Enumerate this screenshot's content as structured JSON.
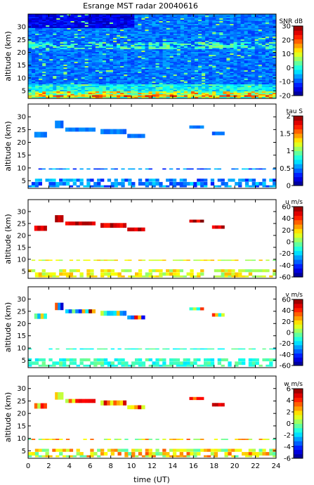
{
  "chart_data": {
    "type": "heatmap",
    "title": "Esrange MST radar 20040616",
    "xlabel": "time (UT)",
    "x_ticks": [
      0,
      2,
      4,
      6,
      8,
      10,
      12,
      14,
      16,
      18,
      20,
      22,
      24
    ],
    "xlim": [
      0,
      24
    ],
    "panels": [
      {
        "ylabel": "altitude (km)",
        "y_ticks": [
          5,
          10,
          15,
          20,
          25,
          30
        ],
        "ylim": [
          2,
          35
        ],
        "colorbar": {
          "label": "SNR dB",
          "ticks": [
            30,
            20,
            10,
            0,
            -10,
            -20
          ],
          "range": [
            -20,
            30
          ]
        },
        "fill": "dense"
      },
      {
        "ylabel": "altitude (km)",
        "y_ticks": [
          5,
          10,
          15,
          20,
          25,
          30
        ],
        "ylim": [
          2,
          35
        ],
        "colorbar": {
          "label": "tau S",
          "ticks": [
            2,
            1.5,
            1,
            0.5,
            0
          ],
          "range": [
            0,
            2
          ]
        },
        "fill": "sparse"
      },
      {
        "ylabel": "altitude (km)",
        "y_ticks": [
          5,
          10,
          15,
          20,
          25,
          30
        ],
        "ylim": [
          2,
          35
        ],
        "colorbar": {
          "label": "u m/s",
          "ticks": [
            60,
            40,
            20,
            0,
            -20,
            -40,
            -60
          ],
          "range": [
            -60,
            60
          ]
        },
        "fill": "sparse"
      },
      {
        "ylabel": "altitude (km)",
        "y_ticks": [
          5,
          10,
          15,
          20,
          25,
          30
        ],
        "ylim": [
          2,
          35
        ],
        "colorbar": {
          "label": "v m/s",
          "ticks": [
            60,
            40,
            20,
            0,
            -20,
            -40,
            -60
          ],
          "range": [
            -60,
            60
          ]
        },
        "fill": "sparse"
      },
      {
        "ylabel": "altitude (km)",
        "y_ticks": [
          5,
          10,
          15,
          20,
          25,
          30
        ],
        "ylim": [
          2,
          35
        ],
        "colorbar": {
          "label": "w m/s",
          "ticks": [
            6,
            4,
            2,
            0,
            -2,
            -4,
            -6
          ],
          "range": [
            -6,
            6
          ]
        },
        "fill": "sparse"
      }
    ]
  }
}
